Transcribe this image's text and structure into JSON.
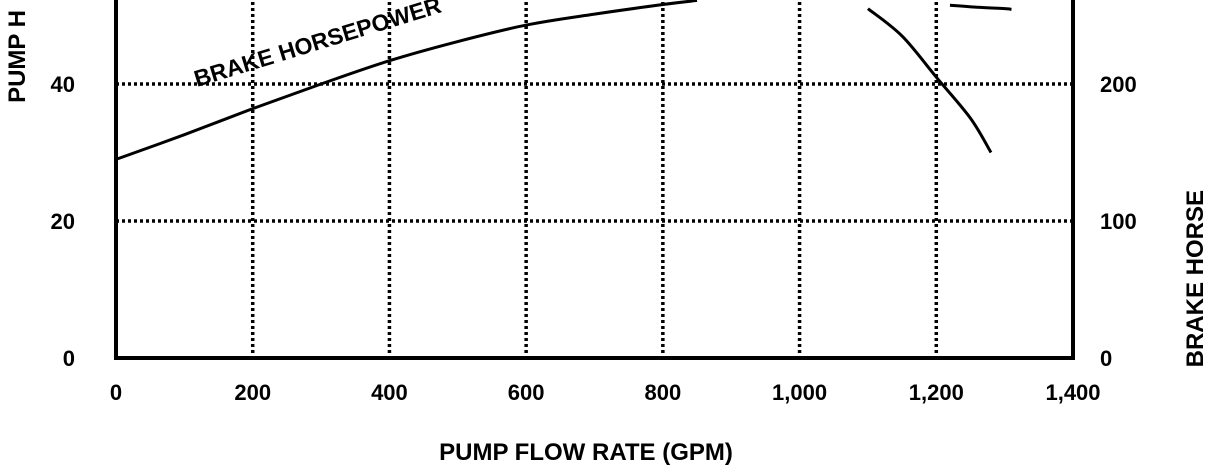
{
  "chart_data": {
    "type": "line",
    "xlabel": "PUMP FLOW RATE (GPM)",
    "ylabel_left": "PUMP H",
    "ylabel_right": "BRAKE HORSE",
    "xlim": [
      0,
      1400
    ],
    "ylim_left": [
      0,
      80
    ],
    "ylim_right": [
      0,
      400
    ],
    "x_ticks": [
      {
        "value": 0,
        "label": "0"
      },
      {
        "value": 200,
        "label": "200"
      },
      {
        "value": 400,
        "label": "400"
      },
      {
        "value": 600,
        "label": "600"
      },
      {
        "value": 800,
        "label": "800"
      },
      {
        "value": 1000,
        "label": "1,000"
      },
      {
        "value": 1200,
        "label": "1,200"
      },
      {
        "value": 1400,
        "label": "1,400"
      }
    ],
    "y_ticks_left": [
      {
        "value": 0,
        "label": "0"
      },
      {
        "value": 20,
        "label": "20"
      },
      {
        "value": 40,
        "label": "40"
      }
    ],
    "y_ticks_right": [
      {
        "value": 0,
        "label": "0"
      },
      {
        "value": 100,
        "label": "100"
      },
      {
        "value": 200,
        "label": "200"
      }
    ],
    "grid": true,
    "series": [
      {
        "name": "BRAKE HORSEPOWER",
        "axis": "right",
        "x": [
          0,
          100,
          200,
          300,
          400,
          500,
          600,
          700,
          800,
          850
        ],
        "y": [
          145,
          163,
          182,
          200,
          217,
          231,
          243,
          251,
          258,
          261
        ]
      },
      {
        "name": "",
        "axis": "left",
        "x": [
          1100,
          1150,
          1200,
          1250,
          1280
        ],
        "y": [
          51,
          47,
          41,
          35,
          30
        ]
      },
      {
        "name": "",
        "axis": "left",
        "x": [
          1220,
          1260,
          1300,
          1310
        ],
        "y": [
          51.5,
          51.2,
          51.0,
          50.9
        ]
      }
    ]
  }
}
